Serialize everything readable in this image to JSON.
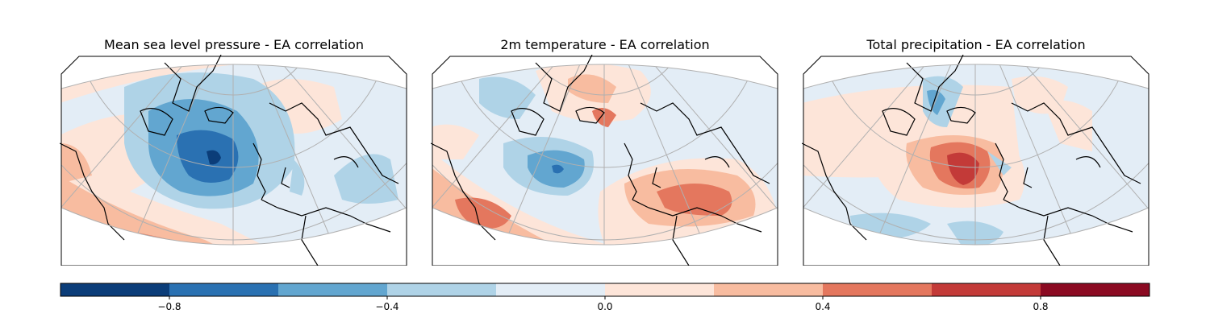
{
  "panels": [
    {
      "title": "Mean sea level pressure - EA correlation"
    },
    {
      "title": "2m temperature - EA correlation"
    },
    {
      "title": "Total precipitation - EA correlation"
    }
  ],
  "colorbar": {
    "min": -1.0,
    "max": 1.0,
    "levels": [
      -1.0,
      -0.8,
      -0.6,
      -0.4,
      -0.2,
      0.0,
      0.2,
      0.4,
      0.6,
      0.8,
      1.0
    ],
    "colors": [
      "#0b3d79",
      "#2a71b2",
      "#62a6d0",
      "#afd3e7",
      "#e3edf6",
      "#fde5d9",
      "#f8bca0",
      "#e4775e",
      "#c33a38",
      "#8b0a22"
    ],
    "ticks": [
      {
        "value": -0.8,
        "label": "−0.8"
      },
      {
        "value": -0.4,
        "label": "−0.4"
      },
      {
        "value": 0.0,
        "label": "0.0"
      },
      {
        "value": 0.4,
        "label": "0.4"
      },
      {
        "value": 0.8,
        "label": "0.8"
      }
    ]
  },
  "colors": {
    "gridline": "#b0b0b0",
    "coastline": "#000000",
    "land_outside": "#ffffff"
  }
}
